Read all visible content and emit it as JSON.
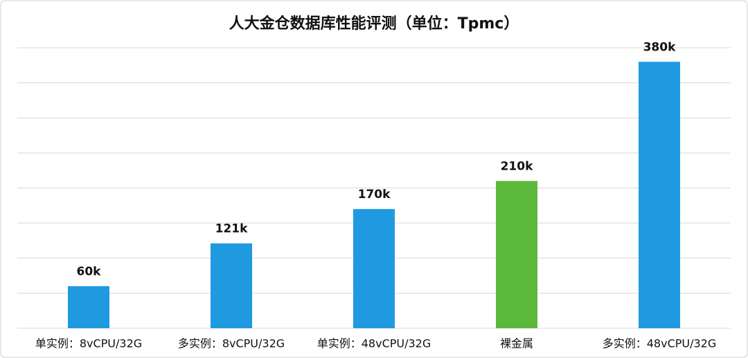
{
  "chart_data": {
    "type": "bar",
    "title": "人大金仓数据库性能评测（单位：Tpmc）",
    "categories": [
      "单实例：8vCPU/32G",
      "多实例：8vCPU/32G",
      "单实例：48vCPU/32G",
      "裸金属",
      "多实例：48vCPU/32G"
    ],
    "values": [
      60000,
      121000,
      170000,
      210000,
      380000
    ],
    "value_labels": [
      "60k",
      "121k",
      "170k",
      "210k",
      "380k"
    ],
    "colors": [
      "#1f9ae0",
      "#1f9ae0",
      "#1f9ae0",
      "#5bb83a",
      "#1f9ae0"
    ],
    "ylim": [
      0,
      400000
    ],
    "yticks": [
      0,
      50000,
      100000,
      150000,
      200000,
      250000,
      300000,
      350000,
      400000
    ],
    "grid": true
  }
}
